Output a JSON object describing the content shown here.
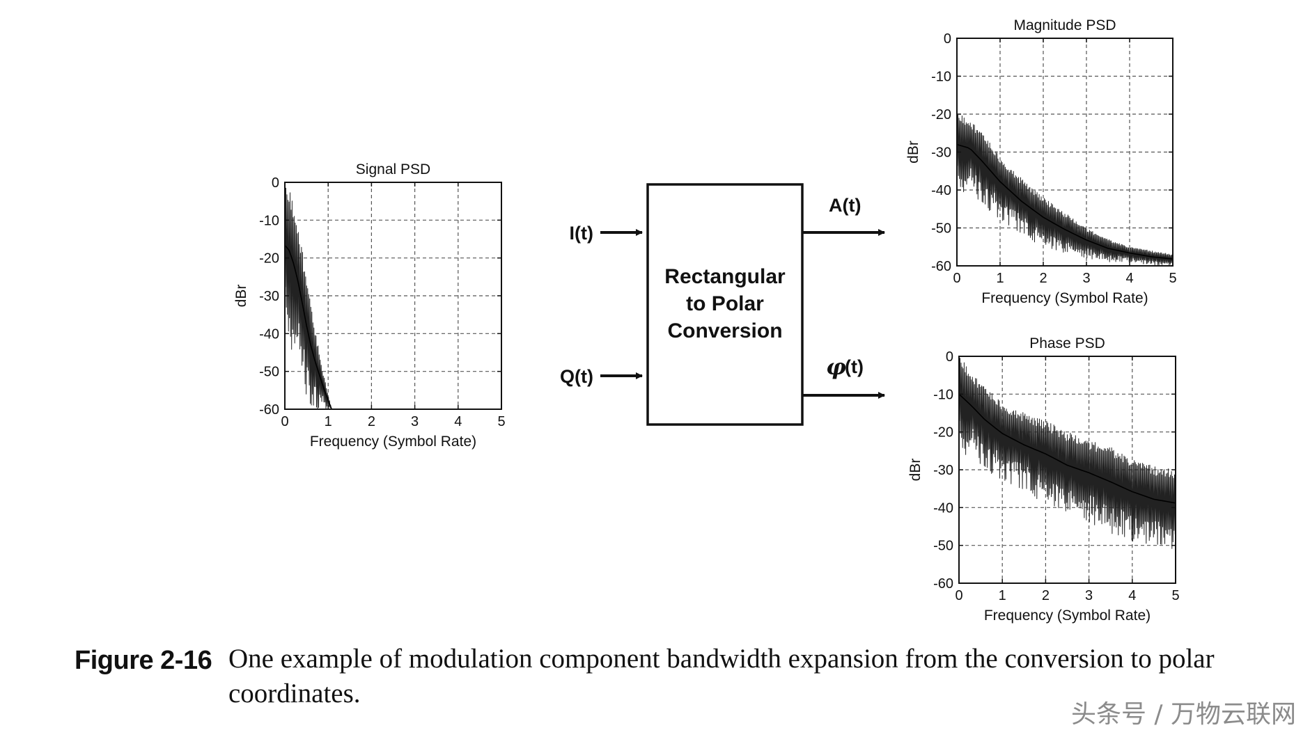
{
  "block": {
    "title_lines": [
      "Rectangular",
      "to Polar",
      "Conversion"
    ],
    "input_i": "I(t)",
    "input_q": "Q(t)",
    "output_a": "A(t)",
    "output_phi_symbol": "φ",
    "output_phi_suffix": "(t)"
  },
  "caption": {
    "label": "Figure 2-16",
    "text": "One example of modulation component bandwidth expansion from the conversion to polar coordinates."
  },
  "watermark": "头条号 / 万物云联网",
  "chart_data": [
    {
      "type": "line",
      "title": "Signal PSD",
      "xlabel": "Frequency (Symbol Rate)",
      "ylabel": "dBr",
      "xlim": [
        0,
        5
      ],
      "ylim": [
        -60,
        0
      ],
      "xticks": [
        "0",
        "1",
        "2",
        "3",
        "4",
        "5"
      ],
      "yticks": [
        "0",
        "-10",
        "-20",
        "-30",
        "-40",
        "-50",
        "-60"
      ],
      "grid": true,
      "series": [
        {
          "upper": [
            [
              0.0,
              -1
            ],
            [
              0.1,
              -2
            ],
            [
              0.2,
              -5
            ],
            [
              0.3,
              -10
            ],
            [
              0.4,
              -17
            ],
            [
              0.5,
              -25
            ],
            [
              0.6,
              -32
            ],
            [
              0.7,
              -39
            ],
            [
              0.8,
              -45
            ],
            [
              0.9,
              -51
            ],
            [
              1.0,
              -56
            ],
            [
              1.08,
              -60
            ]
          ],
          "lower": [
            [
              0.0,
              -40
            ],
            [
              0.1,
              -42
            ],
            [
              0.2,
              -46
            ],
            [
              0.3,
              -50
            ],
            [
              0.4,
              -54
            ],
            [
              0.5,
              -57
            ],
            [
              0.6,
              -60
            ],
            [
              1.08,
              -60
            ]
          ]
        }
      ]
    },
    {
      "type": "line",
      "title": "Magnitude PSD",
      "xlabel": "Frequency (Symbol Rate)",
      "ylabel": "dBr",
      "xlim": [
        0,
        5
      ],
      "ylim": [
        -60,
        0
      ],
      "xticks": [
        "0",
        "1",
        "2",
        "3",
        "4",
        "5"
      ],
      "yticks": [
        "0",
        "-10",
        "-20",
        "-30",
        "-40",
        "-50",
        "-60"
      ],
      "grid": true,
      "series": [
        {
          "upper": [
            [
              0.0,
              -20
            ],
            [
              0.3,
              -21
            ],
            [
              0.6,
              -25
            ],
            [
              1.0,
              -31
            ],
            [
              1.5,
              -37
            ],
            [
              2.0,
              -42
            ],
            [
              2.5,
              -46
            ],
            [
              3.0,
              -50
            ],
            [
              3.5,
              -53
            ],
            [
              4.0,
              -55
            ],
            [
              4.5,
              -56
            ],
            [
              5.0,
              -57
            ]
          ],
          "lower": [
            [
              0.0,
              -40
            ],
            [
              0.3,
              -41
            ],
            [
              0.6,
              -44
            ],
            [
              1.0,
              -48
            ],
            [
              1.5,
              -52
            ],
            [
              2.0,
              -55
            ],
            [
              2.5,
              -57
            ],
            [
              3.0,
              -58
            ],
            [
              3.5,
              -59
            ],
            [
              4.0,
              -59
            ],
            [
              4.5,
              -60
            ],
            [
              5.0,
              -60
            ]
          ]
        }
      ]
    },
    {
      "type": "line",
      "title": "Phase PSD",
      "xlabel": "Frequency (Symbol Rate)",
      "ylabel": "dBr",
      "xlim": [
        0,
        5
      ],
      "ylim": [
        -60,
        0
      ],
      "xticks": [
        "0",
        "1",
        "2",
        "3",
        "4",
        "5"
      ],
      "yticks": [
        "0",
        "-10",
        "-20",
        "-30",
        "-40",
        "-50",
        "-60"
      ],
      "grid": true,
      "series": [
        {
          "upper": [
            [
              0.0,
              0
            ],
            [
              0.3,
              -4
            ],
            [
              0.6,
              -8
            ],
            [
              1.0,
              -12
            ],
            [
              1.5,
              -15
            ],
            [
              2.0,
              -17
            ],
            [
              2.5,
              -20
            ],
            [
              3.0,
              -22
            ],
            [
              3.5,
              -24
            ],
            [
              4.0,
              -27
            ],
            [
              4.5,
              -29
            ],
            [
              5.0,
              -30
            ]
          ],
          "lower": [
            [
              0.0,
              -25
            ],
            [
              0.3,
              -27
            ],
            [
              0.6,
              -30
            ],
            [
              1.0,
              -33
            ],
            [
              1.5,
              -36
            ],
            [
              2.0,
              -39
            ],
            [
              2.5,
              -42
            ],
            [
              3.0,
              -44
            ],
            [
              3.5,
              -47
            ],
            [
              4.0,
              -49
            ],
            [
              4.5,
              -51
            ],
            [
              5.0,
              -52
            ]
          ]
        }
      ]
    }
  ]
}
